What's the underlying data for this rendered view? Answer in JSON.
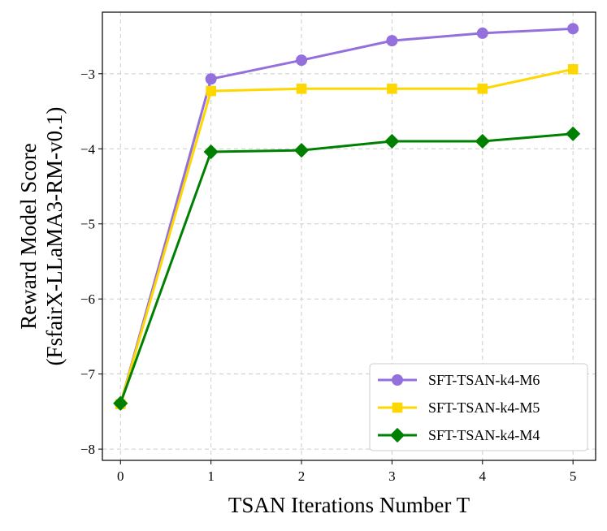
{
  "chart_data": {
    "type": "line",
    "title": "",
    "xlabel": "TSAN Iterations Number T",
    "ylabel_lines": [
      "Reward Model Score",
      "(FsfairX-LLaMA3-RM-v0.1)"
    ],
    "x": [
      0,
      1,
      2,
      3,
      4,
      5
    ],
    "xlim": [
      -0.2,
      5.25
    ],
    "ylim": [
      -8.15,
      -2.18
    ],
    "xticks": [
      0,
      1,
      2,
      3,
      4,
      5
    ],
    "yticks": [
      -8,
      -7,
      -6,
      -5,
      -4,
      -3
    ],
    "ytick_labels": [
      "−8",
      "−7",
      "−6",
      "−5",
      "−4",
      "−3"
    ],
    "grid": true,
    "legend_position": "lower-right",
    "series": [
      {
        "name": "SFT-TSAN-k4-M6",
        "color": "#9370DB",
        "marker": "circle",
        "values": [
          -7.4,
          -3.07,
          -2.82,
          -2.56,
          -2.46,
          -2.4
        ]
      },
      {
        "name": "SFT-TSAN-k4-M5",
        "color": "#FFD700",
        "marker": "square",
        "values": [
          -7.4,
          -3.23,
          -3.2,
          -3.2,
          -3.2,
          -2.94
        ]
      },
      {
        "name": "SFT-TSAN-k4-M4",
        "color": "#008000",
        "marker": "diamond",
        "values": [
          -7.39,
          -4.04,
          -4.02,
          -3.9,
          -3.9,
          -3.8
        ]
      }
    ]
  }
}
